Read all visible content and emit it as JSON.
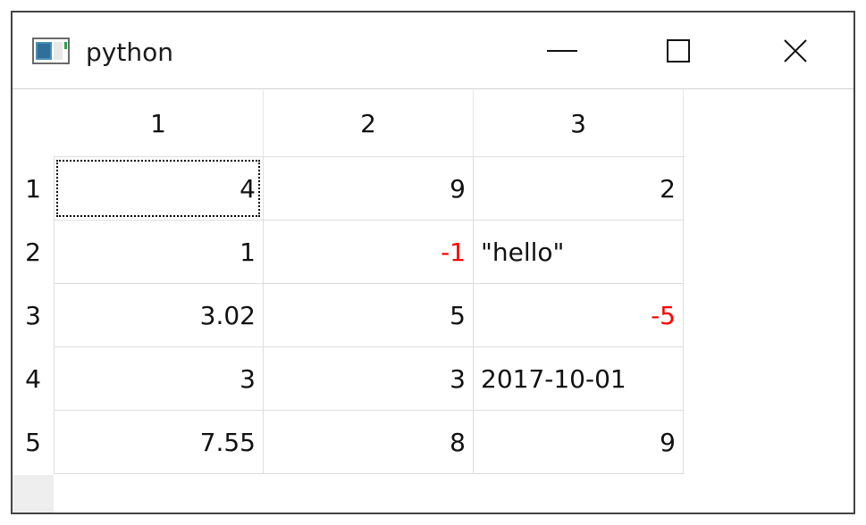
{
  "window": {
    "title": "python",
    "icon": "app-window-icon",
    "controls": [
      "minimize-icon",
      "maximize-icon",
      "close-icon"
    ]
  },
  "table": {
    "column_headers": [
      "1",
      "2",
      "3"
    ],
    "row_headers": [
      "1",
      "2",
      "3",
      "4",
      "5"
    ],
    "rows": [
      [
        "4",
        "9",
        "2"
      ],
      [
        "1",
        "-1",
        "\"hello\""
      ],
      [
        "3.02",
        "5",
        "-5"
      ],
      [
        "3",
        "3",
        "2017-10-01"
      ],
      [
        "7.55",
        "8",
        "9"
      ]
    ],
    "negative_color": "#ff0000",
    "focused_cell": [
      1,
      1
    ]
  }
}
